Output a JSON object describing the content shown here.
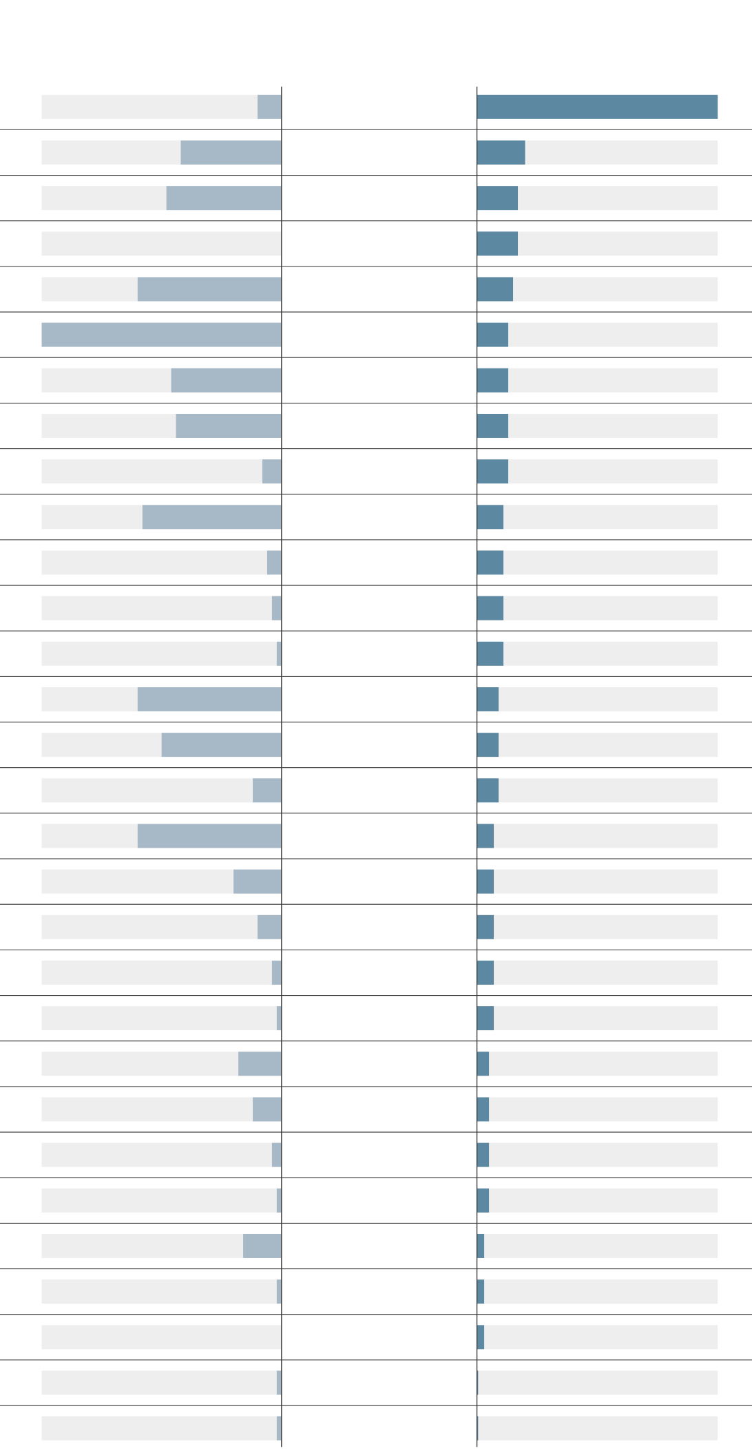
{
  "chart_data": {
    "type": "butterfly",
    "xlim": [
      0,
      100
    ],
    "track_color": "#eeeeee",
    "series": [
      {
        "color": "#a7b8c7",
        "side": "left",
        "values": [
          10,
          42,
          48,
          0,
          60,
          100,
          46,
          44,
          8,
          58,
          6,
          4,
          2,
          60,
          50,
          12,
          60,
          20,
          10,
          4,
          2,
          18,
          12,
          4,
          2,
          16,
          2,
          0,
          2,
          2
        ]
      },
      {
        "color": "#5d88a1",
        "side": "right",
        "values": [
          100,
          20,
          17,
          17,
          15,
          13,
          13,
          13,
          13,
          11,
          11,
          11,
          11,
          9,
          9,
          9,
          7,
          7,
          7,
          7,
          7,
          5,
          5,
          5,
          5,
          3,
          3,
          3,
          0.5,
          0.5
        ]
      }
    ]
  }
}
